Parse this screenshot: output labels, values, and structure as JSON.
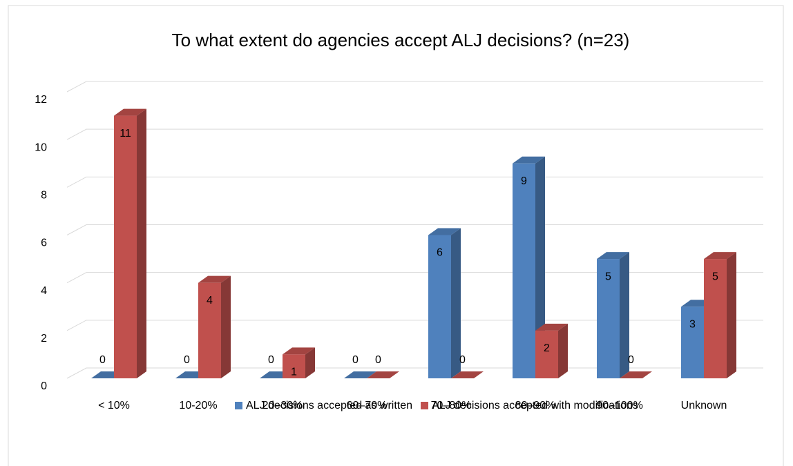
{
  "chart_data": {
    "type": "bar3d",
    "title": "To what extent do agencies accept ALJ decisions? (n=23)",
    "categories": [
      "< 10%",
      "10-20%",
      "20–30%",
      "60–70%",
      "70–80%",
      "80–90%",
      "90–100%",
      "Unknown"
    ],
    "series": [
      {
        "name": "ALJ decisions accepted as written",
        "color": "#4f81bd",
        "values": [
          0,
          0,
          0,
          0,
          6,
          9,
          5,
          3
        ]
      },
      {
        "name": "ALJ decisions accepted with modifications",
        "color": "#c0504d",
        "values": [
          11,
          4,
          1,
          0,
          0,
          2,
          0,
          5
        ]
      }
    ],
    "ylim": [
      0,
      12
    ],
    "yticks": [
      0,
      2,
      4,
      6,
      8,
      10,
      12
    ],
    "grid": true,
    "legend": "bottom"
  }
}
